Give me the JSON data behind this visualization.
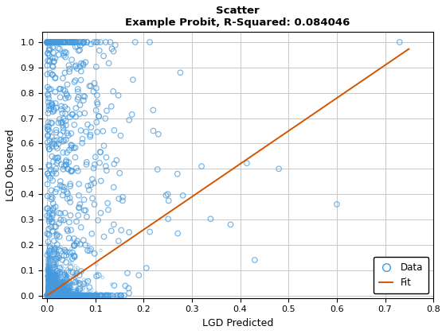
{
  "title_line1": "Scatter",
  "title_line2": "Example Probit, R-Squared: 0.084046",
  "xlabel": "LGD Predicted",
  "ylabel": "LGD Observed",
  "xlim": [
    -0.01,
    0.8
  ],
  "ylim": [
    -0.01,
    1.04
  ],
  "xticks": [
    0,
    0.1,
    0.2,
    0.3,
    0.4,
    0.5,
    0.6,
    0.7,
    0.8
  ],
  "yticks": [
    0,
    0.1,
    0.2,
    0.3,
    0.4,
    0.5,
    0.6,
    0.7,
    0.8,
    0.9,
    1.0
  ],
  "scatter_color": "#4499DD",
  "scatter_alpha": 0.7,
  "scatter_size": 22,
  "scatter_lw": 0.9,
  "fit_color": "#D45500",
  "fit_x": [
    0.0,
    0.749
  ],
  "fit_y": [
    0.0,
    0.973
  ],
  "legend_labels": [
    "Data",
    "Fit"
  ],
  "background_color": "#ffffff",
  "grid_color": "#c8c8c8",
  "grid_lw": 0.7,
  "seed": 42,
  "n_dense": 5000,
  "n_sparse": 600
}
